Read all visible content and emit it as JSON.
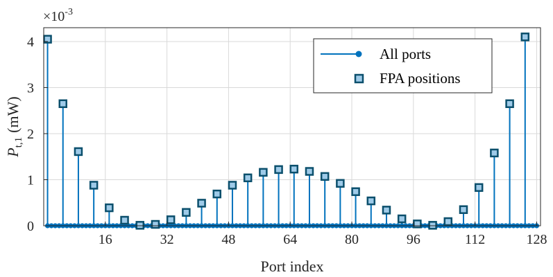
{
  "chart_data": {
    "type": "stem",
    "xlabel": "Port index",
    "ylabel": "P",
    "ylabel_subscript": "t,1",
    "ylabel_unit": "(mW)",
    "y_exponent_label": "×10",
    "y_exponent_value": "-3",
    "xlim": [
      0,
      129
    ],
    "ylim": [
      0,
      4.3
    ],
    "xticks": [
      16,
      32,
      48,
      64,
      80,
      96,
      112,
      128
    ],
    "xtick_labels": [
      "16",
      "32",
      "48",
      "64",
      "80",
      "96",
      "112",
      "128"
    ],
    "yticks": [
      0,
      1,
      2,
      3,
      4
    ],
    "ytick_labels": [
      "0",
      "1",
      "2",
      "3",
      "4"
    ],
    "grid": true,
    "legend_position": "top-right",
    "colors": {
      "stem": "#0072BD",
      "marker_fill": "#9ecae8",
      "marker_edge": "#0b4f6c",
      "grid": "#d9d9d9"
    },
    "series": [
      {
        "name": "All ports",
        "style": "stem-dot",
        "x_range": [
          1,
          128
        ],
        "note_values": "zero except at FPA positions"
      },
      {
        "name": "FPA positions",
        "style": "stem-square",
        "x": [
          1,
          5,
          9,
          13,
          17,
          21,
          25,
          29,
          33,
          37,
          41,
          45,
          49,
          53,
          57,
          61,
          65,
          69,
          73,
          77,
          81,
          85,
          89,
          93,
          97,
          101,
          105,
          109,
          113,
          117,
          121,
          125
        ],
        "values": [
          4.05,
          2.65,
          1.61,
          0.88,
          0.39,
          0.12,
          0.01,
          0.03,
          0.13,
          0.29,
          0.49,
          0.69,
          0.88,
          1.04,
          1.16,
          1.22,
          1.23,
          1.18,
          1.07,
          0.92,
          0.74,
          0.54,
          0.34,
          0.15,
          0.04,
          0.01,
          0.09,
          0.35,
          0.83,
          1.58,
          2.65,
          4.1
        ]
      }
    ]
  }
}
